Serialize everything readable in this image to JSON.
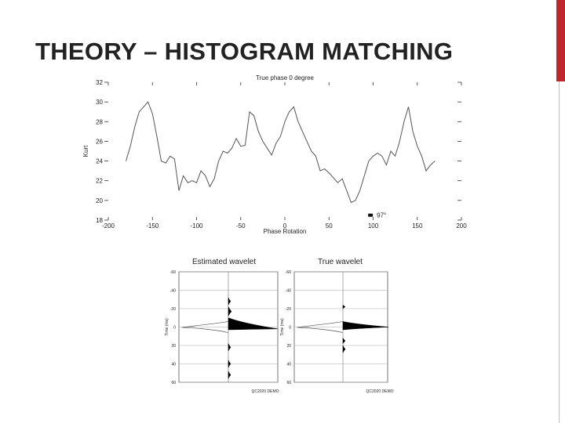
{
  "slide": {
    "title": "THEORY – HISTOGRAM MATCHING",
    "accent_color": "#c0272d"
  },
  "chart_data": [
    {
      "type": "line",
      "title": "True phase 0 degree",
      "xlabel": "Phase Rotation",
      "ylabel": "Kurt",
      "xlim": [
        -200,
        200
      ],
      "ylim": [
        18,
        32
      ],
      "x_ticks": [
        "-200",
        "-150",
        "-100",
        "-50",
        "0",
        "50",
        "100",
        "150",
        "200"
      ],
      "y_ticks": [
        "18",
        "20",
        "22",
        "24",
        "26",
        "28",
        "30",
        "32"
      ],
      "annotation": "97°",
      "grid": false,
      "series": [
        {
          "x": [
            -180,
            -175,
            -170,
            -165,
            -160,
            -155,
            -150,
            -145,
            -140,
            -135,
            -130,
            -125,
            -120,
            -115,
            -110,
            -105,
            -100,
            -95,
            -90,
            -85,
            -80,
            -75,
            -70,
            -65,
            -60,
            -55,
            -50,
            -45,
            -40,
            -35,
            -30,
            -25,
            -20,
            -15,
            -10,
            -5,
            0,
            5,
            10,
            15,
            20,
            25,
            30,
            35,
            40,
            45,
            50,
            55,
            60,
            65,
            70,
            75,
            80,
            85,
            90,
            95,
            100,
            105,
            110,
            115,
            120,
            125,
            130,
            135,
            140,
            145,
            150,
            155,
            160,
            165,
            170,
            175,
            180
          ],
          "y": [
            24.0,
            25.5,
            27.5,
            29.0,
            29.5,
            30.0,
            28.8,
            26.5,
            24.0,
            23.8,
            24.5,
            24.2,
            21.0,
            22.5,
            21.8,
            22.0,
            21.8,
            23.0,
            22.5,
            21.4,
            22.2,
            24.0,
            25.0,
            24.8,
            25.3,
            26.3,
            25.5,
            25.6,
            29.0,
            28.6,
            27.0,
            26.0,
            25.3,
            24.6,
            25.8,
            26.5,
            28.0,
            29.0,
            29.5,
            28.0,
            27.0,
            26.0,
            25.0,
            24.5,
            23.0,
            23.2,
            22.8,
            22.3,
            21.8,
            22.2,
            21.0,
            19.8,
            20.0,
            21.0,
            22.5,
            24.0,
            24.5,
            24.8,
            24.5,
            23.6,
            25.0,
            24.5,
            26.0,
            28.0,
            29.5,
            27.0,
            25.5,
            24.5,
            23.0,
            23.6,
            24.0,
            null,
            null
          ]
        }
      ]
    },
    {
      "type": "line",
      "title": "Estimated wavelet",
      "xlabel": "",
      "ylabel": "Time (ms)",
      "ylim": [
        -60,
        60
      ],
      "y_ticks": [
        "-60",
        "-40",
        "-20",
        "0",
        "20",
        "40",
        "60"
      ],
      "grid": true,
      "footer": "QC2020 DEMO"
    },
    {
      "type": "line",
      "title": "True wavelet",
      "xlabel": "",
      "ylabel": "Time (ms)",
      "ylim": [
        -60,
        60
      ],
      "y_ticks": [
        "-60",
        "-40",
        "-20",
        "0",
        "20",
        "40",
        "60"
      ],
      "grid": true,
      "footer": "QC2020 DEMO"
    }
  ]
}
